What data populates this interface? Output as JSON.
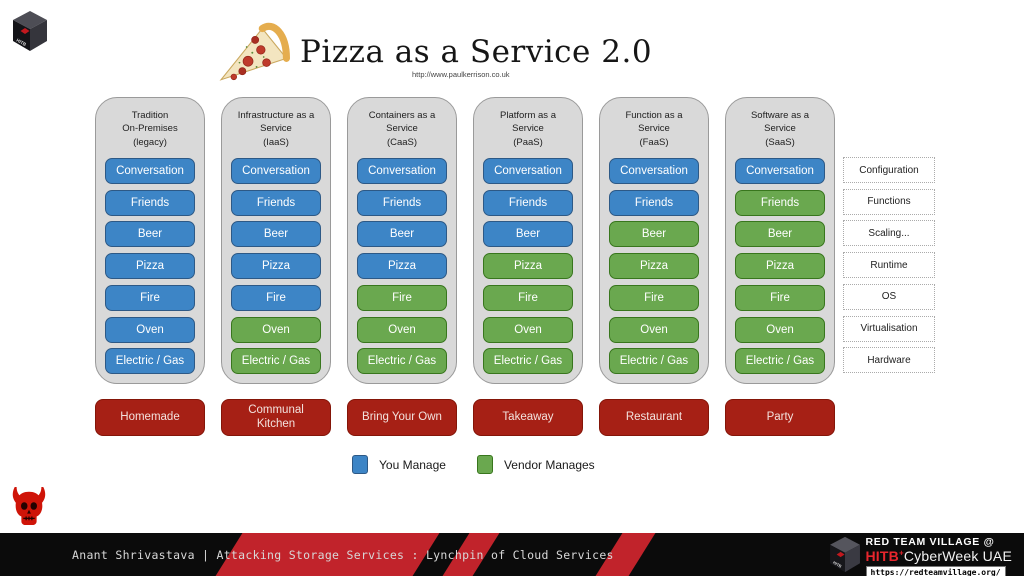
{
  "header": {
    "title": "Pizza as a Service 2.0",
    "source_url": "http://www.paulkerrison.co.uk"
  },
  "colors": {
    "you_manage": "#3d85c6",
    "you_manage_border": "#2d5986",
    "vendor_manages": "#6aa84f",
    "vendor_manages_border": "#38761d",
    "mode_button": "#a62015",
    "mode_button_border": "#841508",
    "column_bg": "#d9d9d9",
    "footer_stripe": "#c1232b"
  },
  "columns": [
    {
      "header": "Tradition\nOn-Premises\n(legacy)",
      "mode": "Homemade",
      "items": [
        {
          "label": "Conversation",
          "owner": "you"
        },
        {
          "label": "Friends",
          "owner": "you"
        },
        {
          "label": "Beer",
          "owner": "you"
        },
        {
          "label": "Pizza",
          "owner": "you"
        },
        {
          "label": "Fire",
          "owner": "you"
        },
        {
          "label": "Oven",
          "owner": "you"
        },
        {
          "label": "Electric / Gas",
          "owner": "you"
        }
      ]
    },
    {
      "header": "Infrastructure as a\nService\n(IaaS)",
      "mode": "Communal\nKitchen",
      "items": [
        {
          "label": "Conversation",
          "owner": "you"
        },
        {
          "label": "Friends",
          "owner": "you"
        },
        {
          "label": "Beer",
          "owner": "you"
        },
        {
          "label": "Pizza",
          "owner": "you"
        },
        {
          "label": "Fire",
          "owner": "you"
        },
        {
          "label": "Oven",
          "owner": "vendor"
        },
        {
          "label": "Electric / Gas",
          "owner": "vendor"
        }
      ]
    },
    {
      "header": "Containers as a\nService\n(CaaS)",
      "mode": "Bring Your Own",
      "items": [
        {
          "label": "Conversation",
          "owner": "you"
        },
        {
          "label": "Friends",
          "owner": "you"
        },
        {
          "label": "Beer",
          "owner": "you"
        },
        {
          "label": "Pizza",
          "owner": "you"
        },
        {
          "label": "Fire",
          "owner": "vendor"
        },
        {
          "label": "Oven",
          "owner": "vendor"
        },
        {
          "label": "Electric / Gas",
          "owner": "vendor"
        }
      ]
    },
    {
      "header": "Platform as a\nService\n(PaaS)",
      "mode": "Takeaway",
      "items": [
        {
          "label": "Conversation",
          "owner": "you"
        },
        {
          "label": "Friends",
          "owner": "you"
        },
        {
          "label": "Beer",
          "owner": "you"
        },
        {
          "label": "Pizza",
          "owner": "vendor"
        },
        {
          "label": "Fire",
          "owner": "vendor"
        },
        {
          "label": "Oven",
          "owner": "vendor"
        },
        {
          "label": "Electric / Gas",
          "owner": "vendor"
        }
      ]
    },
    {
      "header": "Function as a\nService\n(FaaS)",
      "mode": "Restaurant",
      "items": [
        {
          "label": "Conversation",
          "owner": "you"
        },
        {
          "label": "Friends",
          "owner": "you"
        },
        {
          "label": "Beer",
          "owner": "vendor"
        },
        {
          "label": "Pizza",
          "owner": "vendor"
        },
        {
          "label": "Fire",
          "owner": "vendor"
        },
        {
          "label": "Oven",
          "owner": "vendor"
        },
        {
          "label": "Electric / Gas",
          "owner": "vendor"
        }
      ]
    },
    {
      "header": "Software as a\nService\n(SaaS)",
      "mode": "Party",
      "items": [
        {
          "label": "Conversation",
          "owner": "you"
        },
        {
          "label": "Friends",
          "owner": "vendor"
        },
        {
          "label": "Beer",
          "owner": "vendor"
        },
        {
          "label": "Pizza",
          "owner": "vendor"
        },
        {
          "label": "Fire",
          "owner": "vendor"
        },
        {
          "label": "Oven",
          "owner": "vendor"
        },
        {
          "label": "Electric / Gas",
          "owner": "vendor"
        }
      ]
    }
  ],
  "layers": [
    "Configuration",
    "Functions",
    "Scaling...",
    "Runtime",
    "OS",
    "Virtualisation",
    "Hardware"
  ],
  "legend": [
    {
      "label": "You Manage",
      "owner": "you"
    },
    {
      "label": "Vendor Manages",
      "owner": "vendor"
    }
  ],
  "footer": {
    "talk_title": "Anant Shrivastava | Attacking Storage Services : Lynchpin of Cloud Services",
    "org_line1": "RED TEAM VILLAGE @",
    "org_brand": "HITB",
    "org_brand_sup": "+",
    "org_event": "CyberWeek UAE",
    "org_url": "https://redteamvillage.org/"
  },
  "icons": {
    "hitb_cube": "hitb-cube-logo",
    "pizza": "pizza-slice-image",
    "devil": "red-devil-skull-icon"
  }
}
